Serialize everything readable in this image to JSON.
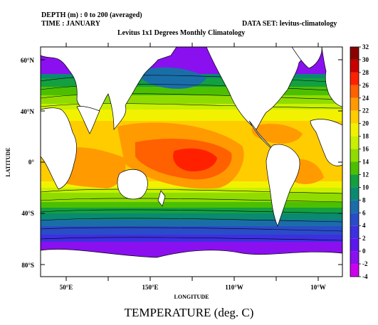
{
  "header": {
    "depth": "DEPTH (m) : 0 to 200 (averaged)",
    "time": "TIME : JANUARY",
    "dataset": "DATA SET: levitus-climatology",
    "subtitle": "Levitus 1x1 Degrees Monthly Climatology"
  },
  "axes": {
    "xlabel": "LONGITUDE",
    "ylabel": "LATITUDE",
    "lat_ticks": [
      "60°N",
      "40°N",
      "0°",
      "40°S",
      "80°S"
    ],
    "lon_ticks": [
      "50°E",
      "150°E",
      "110°W",
      "10°W"
    ]
  },
  "colorbar": {
    "levels": [
      "32",
      "30",
      "28",
      "26",
      "24",
      "22",
      "20",
      "18",
      "16",
      "14",
      "12",
      "10",
      "8",
      "6",
      "4",
      "2",
      "0",
      "-2",
      "-4"
    ],
    "colors": [
      "#8b0000",
      "#c80000",
      "#ff2000",
      "#ff6000",
      "#ff9a00",
      "#ffcc00",
      "#f2f200",
      "#c8f000",
      "#90dc00",
      "#4cc000",
      "#14a040",
      "#0a8a70",
      "#1a6ea8",
      "#2a4cc8",
      "#3c30e0",
      "#5a18ee",
      "#8a10f0",
      "#cc00ee"
    ]
  },
  "title": "TEMPERATURE (deg. C)",
  "colors": {
    "land": "#ffffff",
    "contour": "#000000"
  }
}
